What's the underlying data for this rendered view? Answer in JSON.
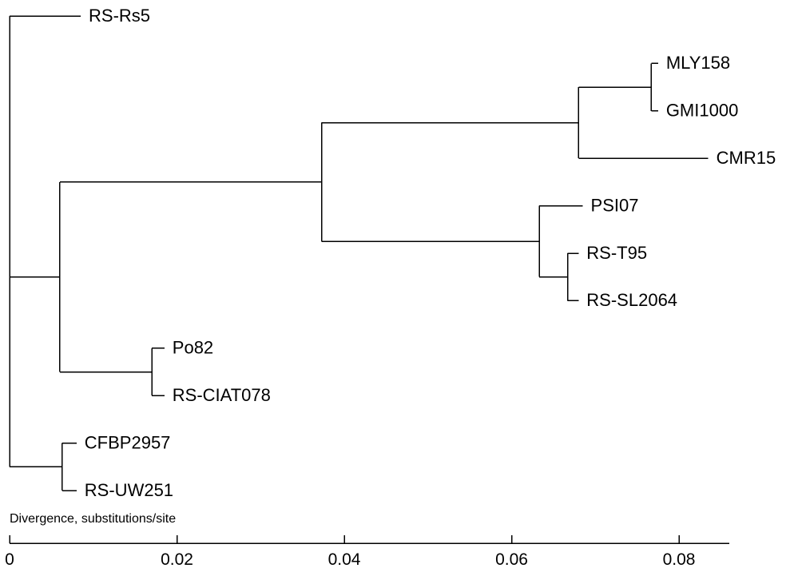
{
  "chart_data": {
    "type": "phylogenetic-tree",
    "axis": {
      "label": "Divergence, substitutions/site",
      "range": [
        0,
        0.086
      ],
      "ticks": [
        0,
        0.02,
        0.04,
        0.06,
        0.08
      ],
      "tick_labels": [
        "0",
        "0.02",
        "0.04",
        "0.06",
        "0.08"
      ]
    },
    "leaves": [
      {
        "id": "rs5",
        "label": "RS-Rs5",
        "x": 0.0085,
        "row": 0
      },
      {
        "id": "mly158",
        "label": "MLY158",
        "x": 0.0775,
        "row": 1
      },
      {
        "id": "gmi1000",
        "label": "GMI1000",
        "x": 0.0775,
        "row": 2
      },
      {
        "id": "cmr15",
        "label": "CMR15",
        "x": 0.0835,
        "row": 3
      },
      {
        "id": "psi07",
        "label": "PSI07",
        "x": 0.0685,
        "row": 4
      },
      {
        "id": "t95",
        "label": "RS-T95",
        "x": 0.068,
        "row": 5
      },
      {
        "id": "sl2064",
        "label": "RS-SL2064",
        "x": 0.068,
        "row": 6
      },
      {
        "id": "po82",
        "label": "Po82",
        "x": 0.0185,
        "row": 7
      },
      {
        "id": "ciat078",
        "label": "RS-CIAT078",
        "x": 0.0185,
        "row": 8
      },
      {
        "id": "cfbp2957",
        "label": "CFBP2957",
        "x": 0.008,
        "row": 9
      },
      {
        "id": "uw251",
        "label": "RS-UW251",
        "x": 0.008,
        "row": 10
      }
    ],
    "nodes": [
      {
        "id": "n_mly_gmi",
        "x": 0.0767,
        "children": [
          "mly158",
          "gmi1000"
        ]
      },
      {
        "id": "n_mly_cmr",
        "x": 0.068,
        "children": [
          "n_mly_gmi",
          "cmr15"
        ]
      },
      {
        "id": "n_t95_sl",
        "x": 0.0667,
        "children": [
          "t95",
          "sl2064"
        ]
      },
      {
        "id": "n_psi",
        "x": 0.0633,
        "children": [
          "psi07",
          "n_t95_sl"
        ]
      },
      {
        "id": "n_phylo1_2",
        "x": 0.0373,
        "children": [
          "n_mly_cmr",
          "n_psi"
        ]
      },
      {
        "id": "n_po_ciat",
        "x": 0.017,
        "children": [
          "po82",
          "ciat078"
        ]
      },
      {
        "id": "n_main",
        "x": 0.006,
        "children": [
          "n_phylo1_2",
          "n_po_ciat"
        ]
      },
      {
        "id": "n_cfbp_uw",
        "x": 0.0063,
        "children": [
          "cfbp2957",
          "uw251"
        ]
      },
      {
        "id": "root",
        "x": 0.0,
        "children": [
          "rs5",
          "n_main",
          "n_cfbp_uw"
        ]
      }
    ],
    "grid": false
  }
}
